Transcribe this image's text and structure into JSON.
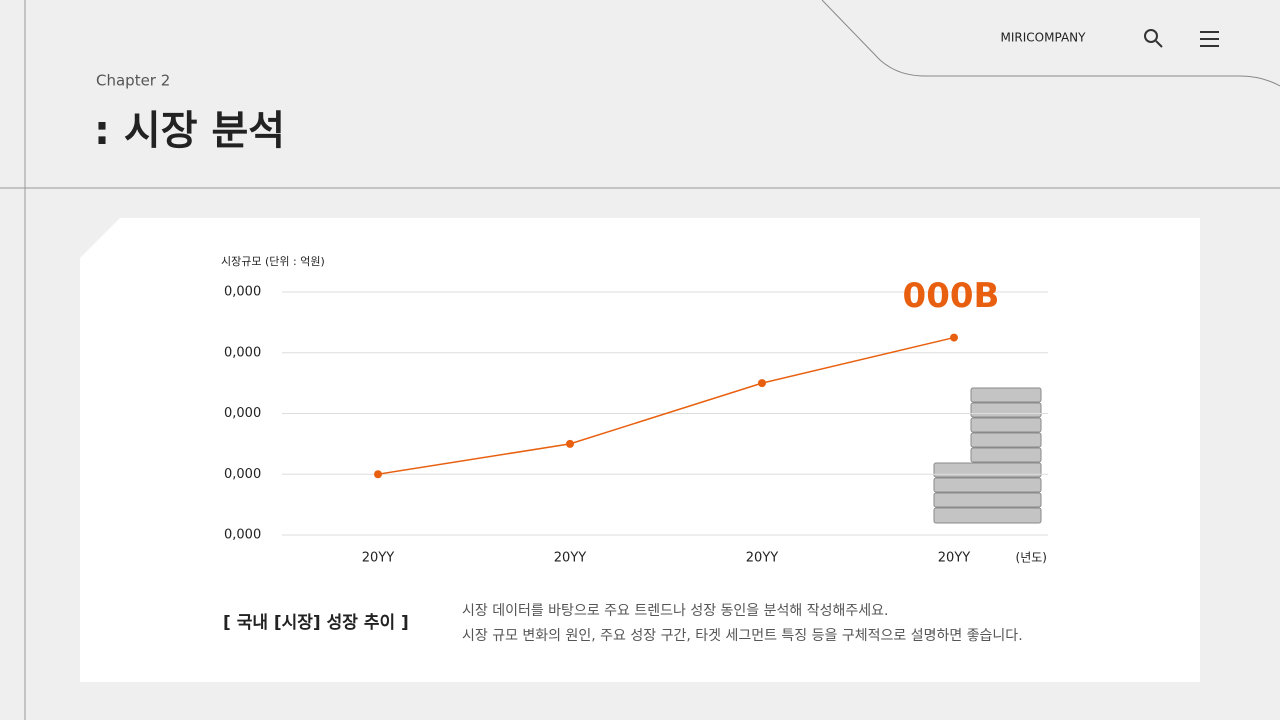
{
  "header": {
    "brand": "MIRICOMPANY",
    "chapter": "Chapter 2",
    "title": ": 시장 분석"
  },
  "chart_data": {
    "type": "line",
    "y_label": "시장규모 (단위 : 억원)",
    "x_unit": "(년도)",
    "categories": [
      "20YY",
      "20YY",
      "20YY",
      "20YY"
    ],
    "values": [
      1,
      1.5,
      2.5,
      3.25
    ],
    "color": "#e8600f",
    "annotation": "000B",
    "ylim": [
      0,
      4
    ],
    "yticks": [
      {
        "value": 0,
        "label": "0,000"
      },
      {
        "value": 1,
        "label": "0,000"
      },
      {
        "value": 2,
        "label": "0,000"
      },
      {
        "value": 3,
        "label": "0,000"
      },
      {
        "value": 4,
        "label": "0,000"
      }
    ],
    "grid": true
  },
  "caption": {
    "title": "[ 국내 [시장] 성장 추이 ]",
    "lines": [
      "시장 데이터를 바탕으로 주요 트렌드나 성장 동인을 분석해 작성해주세요.",
      "시장 규모 변화의 원인, 주요 성장 구간, 타겟 세그먼트 특징 등을 구체적으로 설명하면 좋습니다."
    ]
  }
}
